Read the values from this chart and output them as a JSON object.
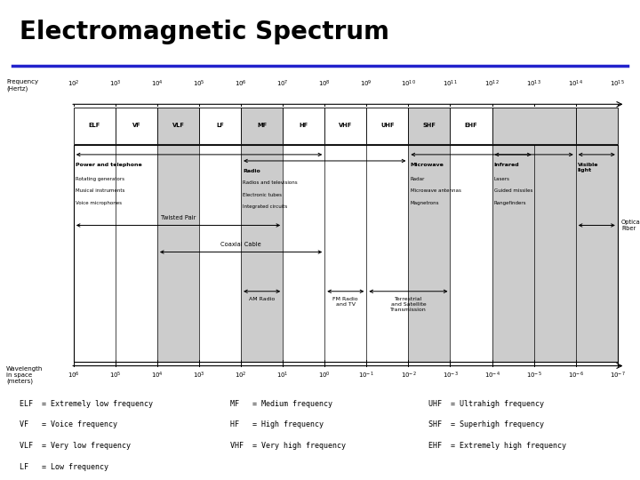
{
  "title": "Electromagnetic Spectrum",
  "title_color": "#000000",
  "title_fontsize": 20,
  "underline_color": "#2222CC",
  "bg_color": "#ffffff",
  "shade_color": "#cccccc",
  "legend_col1": [
    "ELF  = Extremely low frequency",
    "VF   = Voice frequency",
    "VLF  = Very low frequency",
    "LF   = Low frequency"
  ],
  "legend_col2": [
    "MF   = Medium frequency",
    "HF   = High frequency",
    "VHF  = Very high frequency"
  ],
  "legend_col3": [
    "UHF  = Ultrahigh frequency",
    "SHF  = Superhigh frequency",
    "EHF  = Extremely high frequency"
  ]
}
